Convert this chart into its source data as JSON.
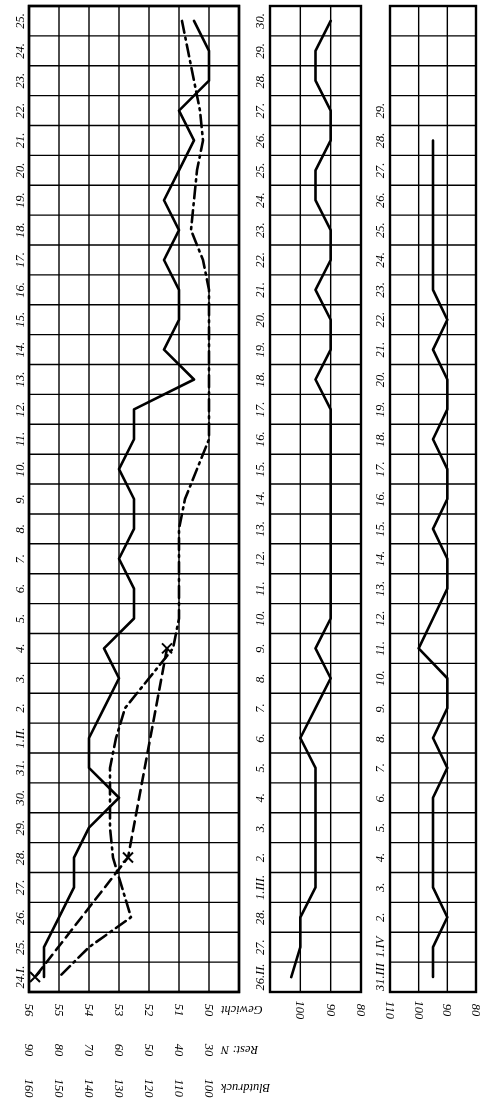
{
  "chart_data": [
    {
      "type": "line",
      "orientation": "horizontal",
      "categories": [
        "25.",
        "24.",
        "23.",
        "22.",
        "21.",
        "20.",
        "19.",
        "18.",
        "17.",
        "16.",
        "15.",
        "14.",
        "13.",
        "12.",
        "11.",
        "10.",
        "9.",
        "8.",
        "7.",
        "6.",
        "5.",
        "4.",
        "3.",
        "2.",
        "1.II.",
        "31.",
        "30.",
        "29.",
        "28.",
        "27.",
        "26.",
        "25.",
        "24.I."
      ],
      "xlabel": "Gewicht",
      "xlim": [
        56,
        49
      ],
      "xticks": [
        56,
        55,
        54,
        53,
        52,
        51,
        50
      ],
      "x2label": "Blutdruck",
      "x2lim": [
        160,
        90
      ],
      "x2ticks": [
        160,
        150,
        140,
        130,
        120,
        110,
        100
      ],
      "grid": true,
      "series": [
        {
          "color": "#000000",
          "line_style": "solid",
          "values": [
            50.5,
            50,
            50,
            51,
            50.5,
            51,
            51.5,
            51,
            51.5,
            51,
            51,
            51.5,
            50.5,
            52.5,
            52.5,
            53,
            52.5,
            52.5,
            53,
            52.5,
            52.5,
            53.5,
            53,
            53.5,
            54,
            54,
            53,
            54,
            54.5,
            54.5,
            55,
            55.5,
            55.5
          ]
        },
        {
          "color": "#000000",
          "line_style": "dashdot",
          "axis": "x2",
          "values": [
            109,
            107,
            105,
            103,
            102,
            104,
            105,
            106,
            102,
            100,
            100,
            100,
            100,
            100,
            100,
            104,
            108,
            110,
            110,
            110,
            110,
            112,
            120,
            128,
            131,
            133,
            133,
            133,
            132,
            129,
            126,
            140,
            150
          ]
        }
      ]
    },
    {
      "type": "line",
      "orientation": "horizontal",
      "tick_labels": "x",
      "categories": [
        null,
        null,
        null,
        null,
        null,
        null,
        null,
        null,
        null,
        null,
        null,
        null,
        null,
        null,
        null,
        null,
        null,
        null,
        null,
        null,
        null,
        null,
        null,
        null,
        null,
        null,
        null,
        null,
        null,
        null,
        null,
        null,
        null
      ],
      "xlabel": "Rest: N",
      "xlim": [
        90,
        20
      ],
      "xticks": [
        90,
        80,
        70,
        60,
        50,
        40,
        30
      ],
      "series": [
        {
          "color": "#000000",
          "line_style": "dashed",
          "marker": "cross",
          "values": [
            null,
            null,
            null,
            null,
            null,
            null,
            null,
            null,
            null,
            null,
            null,
            null,
            null,
            null,
            null,
            null,
            null,
            null,
            null,
            null,
            null,
            44,
            null,
            null,
            null,
            null,
            null,
            null,
            57,
            null,
            null,
            null,
            88
          ]
        }
      ]
    },
    {
      "type": "line",
      "orientation": "horizontal",
      "categories": [
        "30.",
        "29.",
        "28.",
        "27.",
        "26.",
        "25.",
        "24.",
        "23.",
        "22.",
        "21.",
        "20.",
        "19.",
        "18.",
        "17.",
        "16.",
        "15.",
        "14.",
        "13.",
        "12.",
        "11.",
        "10.",
        "9.",
        "8.",
        "7.",
        "6.",
        "5.",
        "4.",
        "3.",
        "2.",
        "1.III.",
        "28.",
        "27.",
        "26.II."
      ],
      "xlim": [
        110,
        80
      ],
      "xticks": [
        100,
        90,
        80
      ],
      "grid": true,
      "series": [
        {
          "color": "#000000",
          "line_style": "solid",
          "values": [
            90,
            95,
            95,
            90,
            90,
            95,
            95,
            90,
            90,
            95,
            90,
            90,
            95,
            90,
            90,
            90,
            90,
            90,
            90,
            90,
            90,
            95,
            90,
            95,
            100,
            95,
            95,
            95,
            95,
            95,
            100,
            100,
            103
          ]
        }
      ]
    },
    {
      "type": "line",
      "orientation": "horizontal",
      "categories": [
        null,
        null,
        null,
        "29.",
        "28.",
        "27.",
        "26.",
        "25.",
        "24.",
        "23.",
        "22.",
        "21.",
        "20.",
        "19.",
        "18.",
        "17.",
        "16.",
        "15.",
        "14.",
        "13.",
        "12.",
        "11.",
        "10.",
        "9.",
        "8.",
        "7.",
        "6.",
        "5.",
        "4.",
        "3.",
        "2.",
        "1.IV",
        "31.III"
      ],
      "xlim": [
        110,
        80
      ],
      "xticks": [
        110,
        100,
        90,
        80
      ],
      "grid": true,
      "series": [
        {
          "color": "#000000",
          "line_style": "solid",
          "values": [
            null,
            null,
            null,
            null,
            95,
            95,
            95,
            95,
            95,
            95,
            90,
            95,
            90,
            90,
            95,
            90,
            90,
            95,
            90,
            90,
            95,
            100,
            90,
            90,
            95,
            90,
            95,
            95,
            95,
            95,
            90,
            95,
            95
          ]
        }
      ]
    }
  ]
}
